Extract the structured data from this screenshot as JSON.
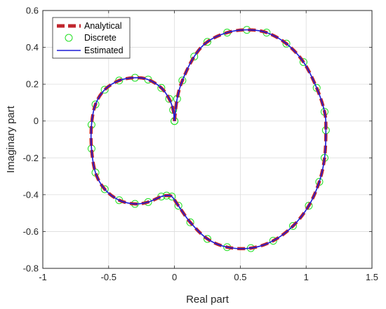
{
  "chart_data": {
    "type": "line",
    "title": "",
    "xlabel": "Real part",
    "ylabel": "Imaginary part",
    "xlim": [
      -1,
      1.5
    ],
    "ylim": [
      -0.8,
      0.6
    ],
    "xticks": [
      -1,
      -0.5,
      0,
      0.5,
      1,
      1.5
    ],
    "yticks": [
      -0.8,
      -0.6,
      -0.4,
      -0.2,
      0,
      0.2,
      0.4,
      0.6
    ],
    "xtick_labels": [
      "-1",
      "-0.5",
      "0",
      "0.5",
      "1",
      "1.5"
    ],
    "ytick_labels": [
      "-0.8",
      "-0.6",
      "-0.4",
      "-0.2",
      "0",
      "0.2",
      "0.4",
      "0.6"
    ],
    "grid": true,
    "legend_position": "top-left",
    "series": [
      {
        "name": "Analytical",
        "style": "thick-dashed-line",
        "color": "#c0262d",
        "points": [
          [
            0.0,
            0.0
          ],
          [
            0.02,
            0.12
          ],
          [
            0.06,
            0.22
          ],
          [
            0.15,
            0.35
          ],
          [
            0.25,
            0.43
          ],
          [
            0.4,
            0.48
          ],
          [
            0.55,
            0.495
          ],
          [
            0.7,
            0.48
          ],
          [
            0.85,
            0.42
          ],
          [
            0.98,
            0.32
          ],
          [
            1.08,
            0.18
          ],
          [
            1.14,
            0.05
          ],
          [
            1.15,
            -0.05
          ],
          [
            1.14,
            -0.2
          ],
          [
            1.1,
            -0.33
          ],
          [
            1.02,
            -0.46
          ],
          [
            0.9,
            -0.57
          ],
          [
            0.75,
            -0.65
          ],
          [
            0.58,
            -0.69
          ],
          [
            0.4,
            -0.685
          ],
          [
            0.25,
            -0.64
          ],
          [
            0.12,
            -0.55
          ],
          [
            0.03,
            -0.46
          ],
          [
            -0.02,
            -0.41
          ],
          [
            -0.06,
            -0.405
          ],
          [
            -0.1,
            -0.41
          ],
          [
            -0.2,
            -0.44
          ],
          [
            -0.3,
            -0.45
          ],
          [
            -0.42,
            -0.43
          ],
          [
            -0.53,
            -0.37
          ],
          [
            -0.6,
            -0.28
          ],
          [
            -0.63,
            -0.15
          ],
          [
            -0.63,
            -0.02
          ],
          [
            -0.6,
            0.09
          ],
          [
            -0.53,
            0.17
          ],
          [
            -0.42,
            0.22
          ],
          [
            -0.3,
            0.235
          ],
          [
            -0.2,
            0.225
          ],
          [
            -0.1,
            0.18
          ],
          [
            -0.04,
            0.12
          ],
          [
            -0.01,
            0.06
          ],
          [
            0.0,
            0.0
          ]
        ]
      },
      {
        "name": "Discrete",
        "style": "circle-markers",
        "color": "#22e022",
        "points": [
          [
            0.0,
            0.0
          ],
          [
            0.02,
            0.12
          ],
          [
            0.06,
            0.22
          ],
          [
            0.15,
            0.35
          ],
          [
            0.25,
            0.43
          ],
          [
            0.4,
            0.48
          ],
          [
            0.55,
            0.495
          ],
          [
            0.7,
            0.48
          ],
          [
            0.85,
            0.42
          ],
          [
            0.98,
            0.32
          ],
          [
            1.08,
            0.18
          ],
          [
            1.14,
            0.05
          ],
          [
            1.15,
            -0.05
          ],
          [
            1.14,
            -0.2
          ],
          [
            1.1,
            -0.33
          ],
          [
            1.02,
            -0.46
          ],
          [
            0.9,
            -0.57
          ],
          [
            0.75,
            -0.65
          ],
          [
            0.58,
            -0.69
          ],
          [
            0.4,
            -0.685
          ],
          [
            0.25,
            -0.64
          ],
          [
            0.12,
            -0.55
          ],
          [
            0.03,
            -0.46
          ],
          [
            -0.02,
            -0.41
          ],
          [
            -0.06,
            -0.405
          ],
          [
            -0.1,
            -0.41
          ],
          [
            -0.2,
            -0.44
          ],
          [
            -0.3,
            -0.45
          ],
          [
            -0.42,
            -0.43
          ],
          [
            -0.53,
            -0.37
          ],
          [
            -0.6,
            -0.28
          ],
          [
            -0.63,
            -0.15
          ],
          [
            -0.63,
            -0.02
          ],
          [
            -0.6,
            0.09
          ],
          [
            -0.53,
            0.17
          ],
          [
            -0.42,
            0.22
          ],
          [
            -0.3,
            0.235
          ],
          [
            -0.2,
            0.225
          ],
          [
            -0.1,
            0.18
          ],
          [
            -0.04,
            0.12
          ],
          [
            -0.01,
            0.06
          ],
          [
            0.0,
            0.0
          ]
        ]
      },
      {
        "name": "Estimated",
        "style": "solid-line",
        "color": "#1a1ad6",
        "points": [
          [
            0.0,
            0.0
          ],
          [
            0.02,
            0.12
          ],
          [
            0.06,
            0.22
          ],
          [
            0.15,
            0.35
          ],
          [
            0.25,
            0.43
          ],
          [
            0.4,
            0.48
          ],
          [
            0.55,
            0.495
          ],
          [
            0.7,
            0.48
          ],
          [
            0.85,
            0.42
          ],
          [
            0.98,
            0.32
          ],
          [
            1.08,
            0.18
          ],
          [
            1.14,
            0.05
          ],
          [
            1.15,
            -0.05
          ],
          [
            1.14,
            -0.2
          ],
          [
            1.1,
            -0.33
          ],
          [
            1.02,
            -0.46
          ],
          [
            0.9,
            -0.57
          ],
          [
            0.75,
            -0.65
          ],
          [
            0.58,
            -0.69
          ],
          [
            0.4,
            -0.685
          ],
          [
            0.25,
            -0.64
          ],
          [
            0.12,
            -0.55
          ],
          [
            0.03,
            -0.46
          ],
          [
            -0.02,
            -0.41
          ],
          [
            -0.06,
            -0.405
          ],
          [
            -0.1,
            -0.41
          ],
          [
            -0.2,
            -0.44
          ],
          [
            -0.3,
            -0.45
          ],
          [
            -0.42,
            -0.43
          ],
          [
            -0.53,
            -0.37
          ],
          [
            -0.6,
            -0.28
          ],
          [
            -0.63,
            -0.15
          ],
          [
            -0.63,
            -0.02
          ],
          [
            -0.6,
            0.09
          ],
          [
            -0.53,
            0.17
          ],
          [
            -0.42,
            0.22
          ],
          [
            -0.3,
            0.235
          ],
          [
            -0.2,
            0.225
          ],
          [
            -0.1,
            0.18
          ],
          [
            -0.04,
            0.12
          ],
          [
            -0.01,
            0.06
          ],
          [
            0.0,
            0.0
          ]
        ]
      }
    ]
  }
}
